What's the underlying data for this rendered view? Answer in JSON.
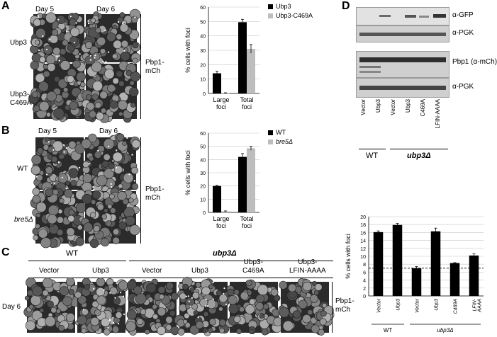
{
  "panels": {
    "A": {
      "letter": "A",
      "col_headers": [
        "Day 5",
        "Day 6"
      ],
      "row_labels": [
        "Ubp3",
        "Ubp3-\nC469A"
      ],
      "reporter": "Pbp1-\nmCh"
    },
    "B": {
      "letter": "B",
      "col_headers": [
        "Day 5",
        "Day 6"
      ],
      "row_labels": [
        "WT",
        "bre5Δ"
      ],
      "reporter": "Pbp1-\nmCh"
    },
    "C": {
      "letter": "C",
      "group_wt": "WT",
      "group_mut": "ubp3Δ",
      "col_labels": [
        "Vector",
        "Ubp3",
        "Vector",
        "Ubp3",
        "Ubp3-\nC469A",
        "Ubp3-\nLFIN-AAAA"
      ],
      "row_label": "Day 6",
      "reporter": "Pbp1-\nmCh"
    },
    "D": {
      "letter": "D",
      "blot_labels": [
        "α-GFP",
        "α-PGK",
        "Pbp1 (α-mCh)",
        "α-PGK"
      ],
      "lane_labels": [
        "Vector",
        "Ubp3",
        "Vector",
        "Ubp3",
        "C469A",
        "LFIN-AAAA"
      ],
      "group_wt": "WT",
      "group_mut": "ubp3Δ"
    }
  },
  "chart_data": [
    {
      "type": "bar",
      "panel": "A",
      "categories": [
        "Large\nfoci",
        "Total\nfoci"
      ],
      "series": [
        {
          "name": "Ubp3",
          "values": [
            14,
            49.5
          ],
          "errors": [
            1.5,
            2
          ],
          "color": "#000000"
        },
        {
          "name": "Ubp3-C469A",
          "values": [
            0.3,
            31
          ],
          "errors": [
            0.2,
            3
          ],
          "color": "#bdbdbd"
        }
      ],
      "ylabel": "% cells with foci",
      "ylim": [
        0,
        60
      ],
      "yticks": [
        0,
        10,
        20,
        30,
        40,
        50,
        60
      ],
      "legend_position": "top-right"
    },
    {
      "type": "bar",
      "panel": "B",
      "categories": [
        "Large\nfoci",
        "Total\nfoci"
      ],
      "series": [
        {
          "name": "WT",
          "values": [
            20,
            42
          ],
          "errors": [
            0.5,
            2.5
          ],
          "color": "#000000"
        },
        {
          "name": "bre5Δ",
          "values": [
            0.8,
            48.5
          ],
          "errors": [
            0.3,
            1.5
          ],
          "color": "#bdbdbd"
        }
      ],
      "ylabel": "% cells with foci",
      "ylim": [
        0,
        60
      ],
      "yticks": [
        0,
        10,
        20,
        30,
        40,
        50,
        60
      ],
      "legend_position": "top-right"
    },
    {
      "type": "bar",
      "panel": "D",
      "categories": [
        "Vector",
        "Ubp3",
        "Vector",
        "Ubp3",
        "C469A",
        "LFIN-\nAAAA"
      ],
      "series": [
        {
          "values": [
            16.1,
            17.9,
            7,
            16.3,
            8.3,
            10.2
          ],
          "errors": [
            0.3,
            0.4,
            0.4,
            0.8,
            0.1,
            0.4
          ],
          "color": "#000000"
        }
      ],
      "ylabel": "% cells with foci",
      "ylim": [
        0,
        20
      ],
      "yticks": [
        0,
        2,
        4,
        6,
        8,
        10,
        12,
        14,
        16,
        18,
        20
      ],
      "reference_line": 7,
      "groups": [
        {
          "label": "WT",
          "span": [
            0,
            1
          ]
        },
        {
          "label": "ubp3Δ",
          "span": [
            2,
            5
          ]
        }
      ]
    }
  ]
}
